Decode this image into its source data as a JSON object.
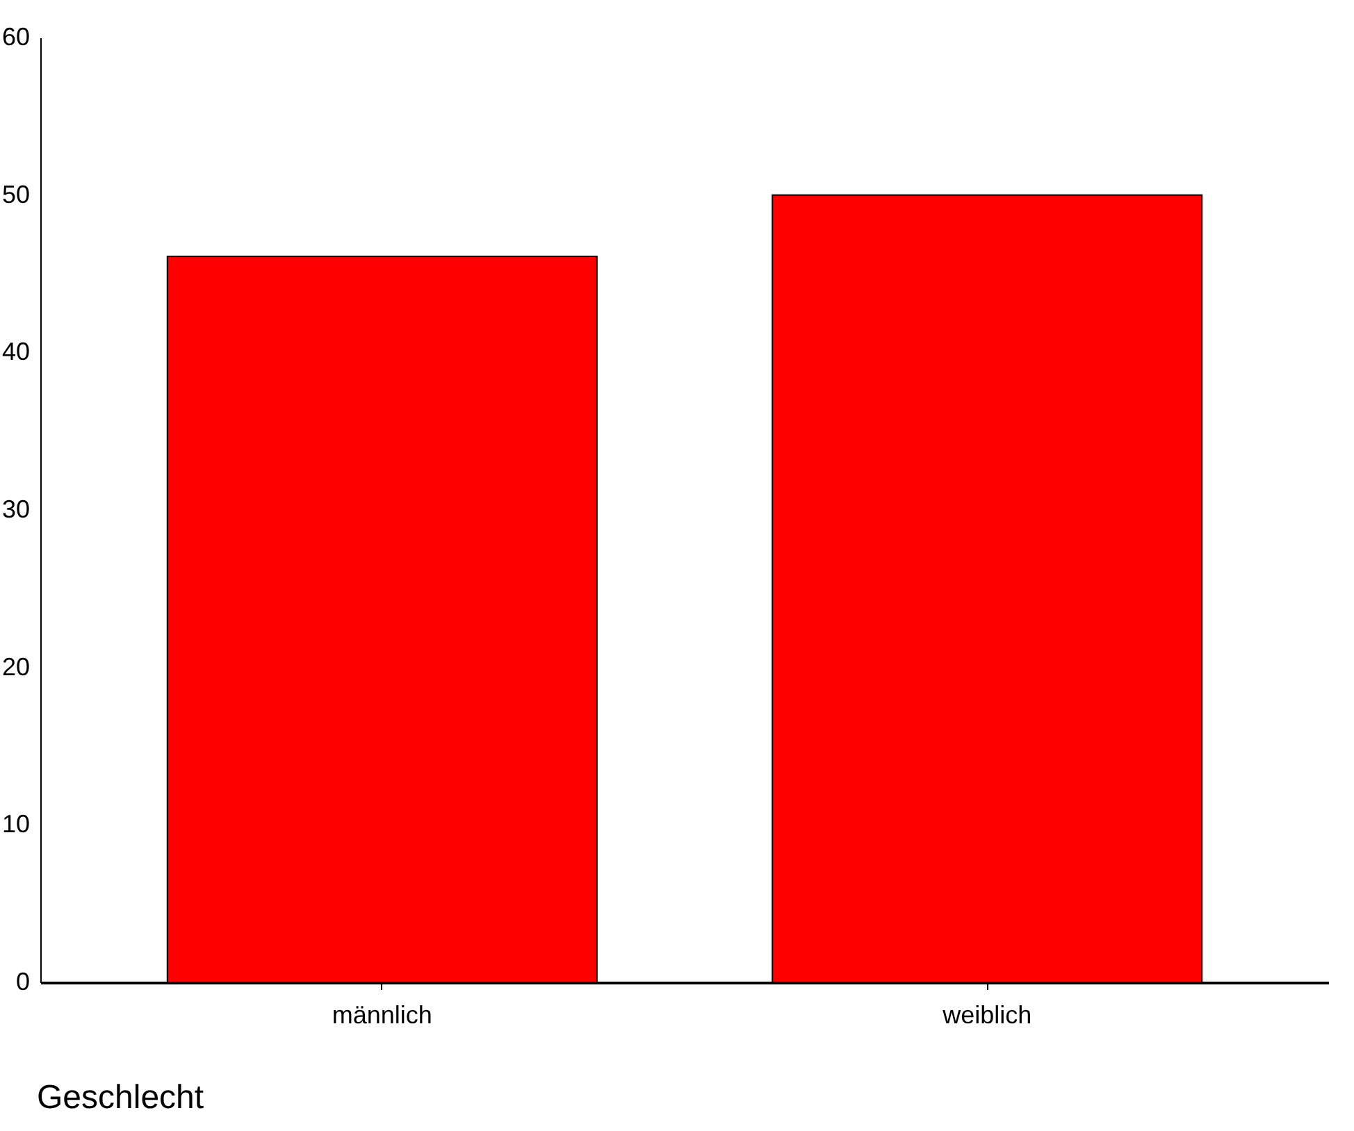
{
  "chart_data": {
    "type": "bar",
    "xlabel": "Geschlecht",
    "categories": [
      "männlich",
      "weiblich"
    ],
    "values": [
      46.1,
      50.0
    ],
    "color": "#ff0000",
    "ylim": [
      0,
      60
    ],
    "yticks": [
      0,
      10,
      20,
      30,
      40,
      50,
      60
    ],
    "grid": false
  }
}
